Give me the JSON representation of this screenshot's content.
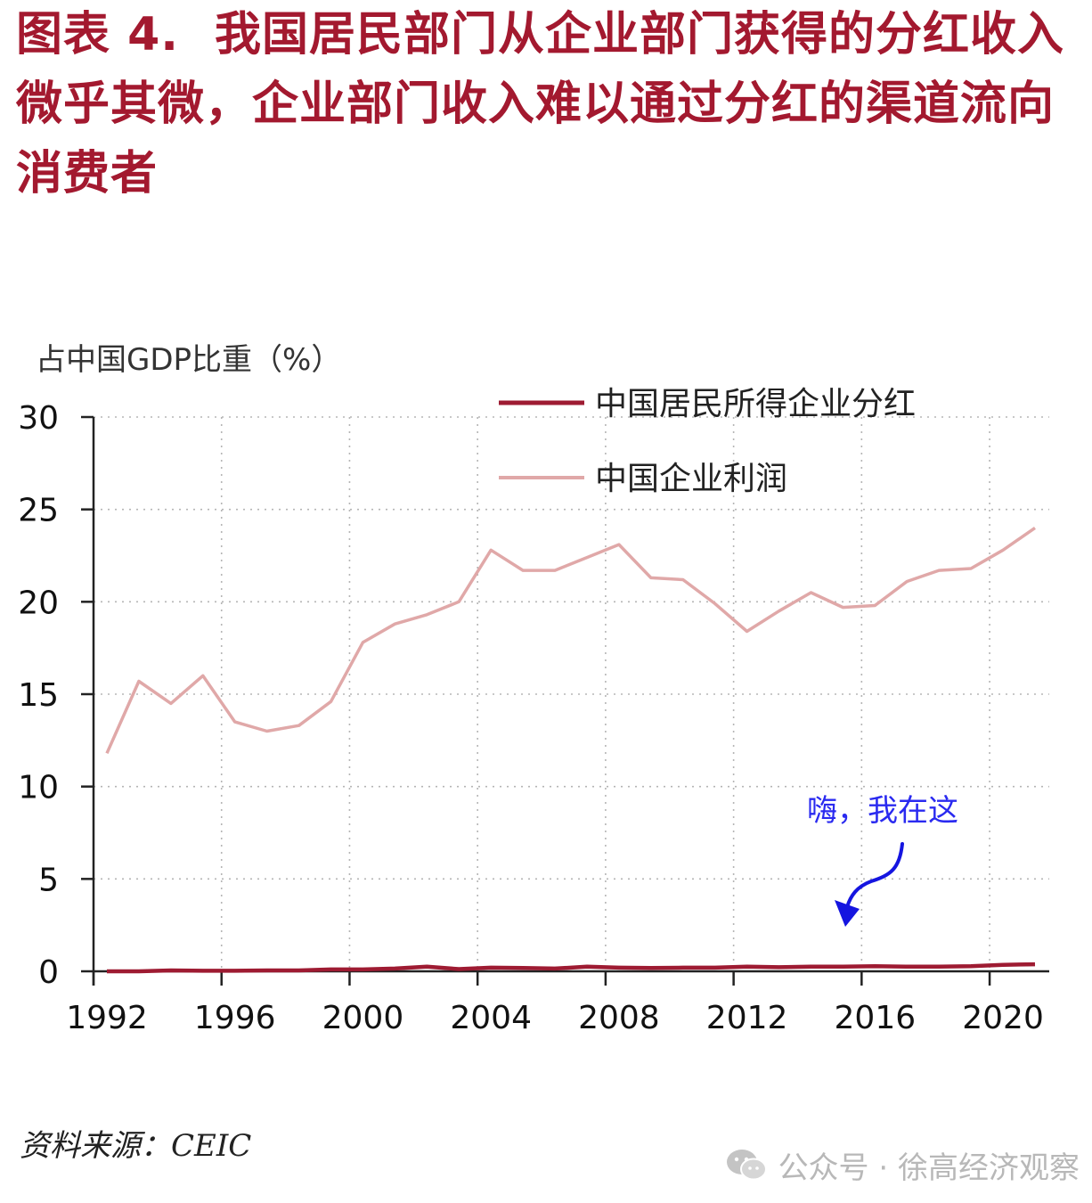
{
  "header": {
    "figure_label": "图表 4.",
    "title": "我国居民部门从企业部门获得的分红收入微乎其微，企业部门收入难以通过分红的渠道流向消费者"
  },
  "chart_data": {
    "type": "line",
    "ylabel": "占中国GDP比重（%）",
    "xlabel": "",
    "ylim": [
      0,
      30
    ],
    "yticks": [
      0,
      5,
      10,
      15,
      20,
      25,
      30
    ],
    "xlim": [
      1992,
      2021
    ],
    "xticks": [
      1992,
      1996,
      2000,
      2004,
      2008,
      2012,
      2016,
      2020
    ],
    "grid": true,
    "legend_position": "top-right",
    "x": [
      1992,
      1993,
      1994,
      1995,
      1996,
      1997,
      1998,
      1999,
      2000,
      2001,
      2002,
      2003,
      2004,
      2005,
      2006,
      2007,
      2008,
      2009,
      2010,
      2011,
      2012,
      2013,
      2014,
      2015,
      2016,
      2017,
      2018,
      2019,
      2020,
      2021
    ],
    "series": [
      {
        "name": "中国居民所得企业分红",
        "color": "#9e1b32",
        "values": [
          0.0,
          0.0,
          0.05,
          0.03,
          0.03,
          0.05,
          0.05,
          0.1,
          0.1,
          0.15,
          0.25,
          0.12,
          0.2,
          0.18,
          0.15,
          0.25,
          0.2,
          0.18,
          0.2,
          0.2,
          0.25,
          0.22,
          0.25,
          0.25,
          0.28,
          0.25,
          0.25,
          0.28,
          0.35,
          0.38
        ]
      },
      {
        "name": "中国企业利润",
        "color": "#e0a8a8",
        "values": [
          11.8,
          15.7,
          14.5,
          16.0,
          13.5,
          13.0,
          13.3,
          14.6,
          17.8,
          18.8,
          19.3,
          20.0,
          22.8,
          21.7,
          21.7,
          22.4,
          23.1,
          21.3,
          21.2,
          19.9,
          18.4,
          19.5,
          20.5,
          19.7,
          19.8,
          21.1,
          21.7,
          21.8,
          22.8,
          24.0
        ]
      }
    ],
    "annotation": {
      "text": "嗨，我在这",
      "color": "#2a2af0"
    }
  },
  "footer": {
    "source": "资料来源：CEIC",
    "watermark": "公众号 · 徐高经济观察"
  }
}
